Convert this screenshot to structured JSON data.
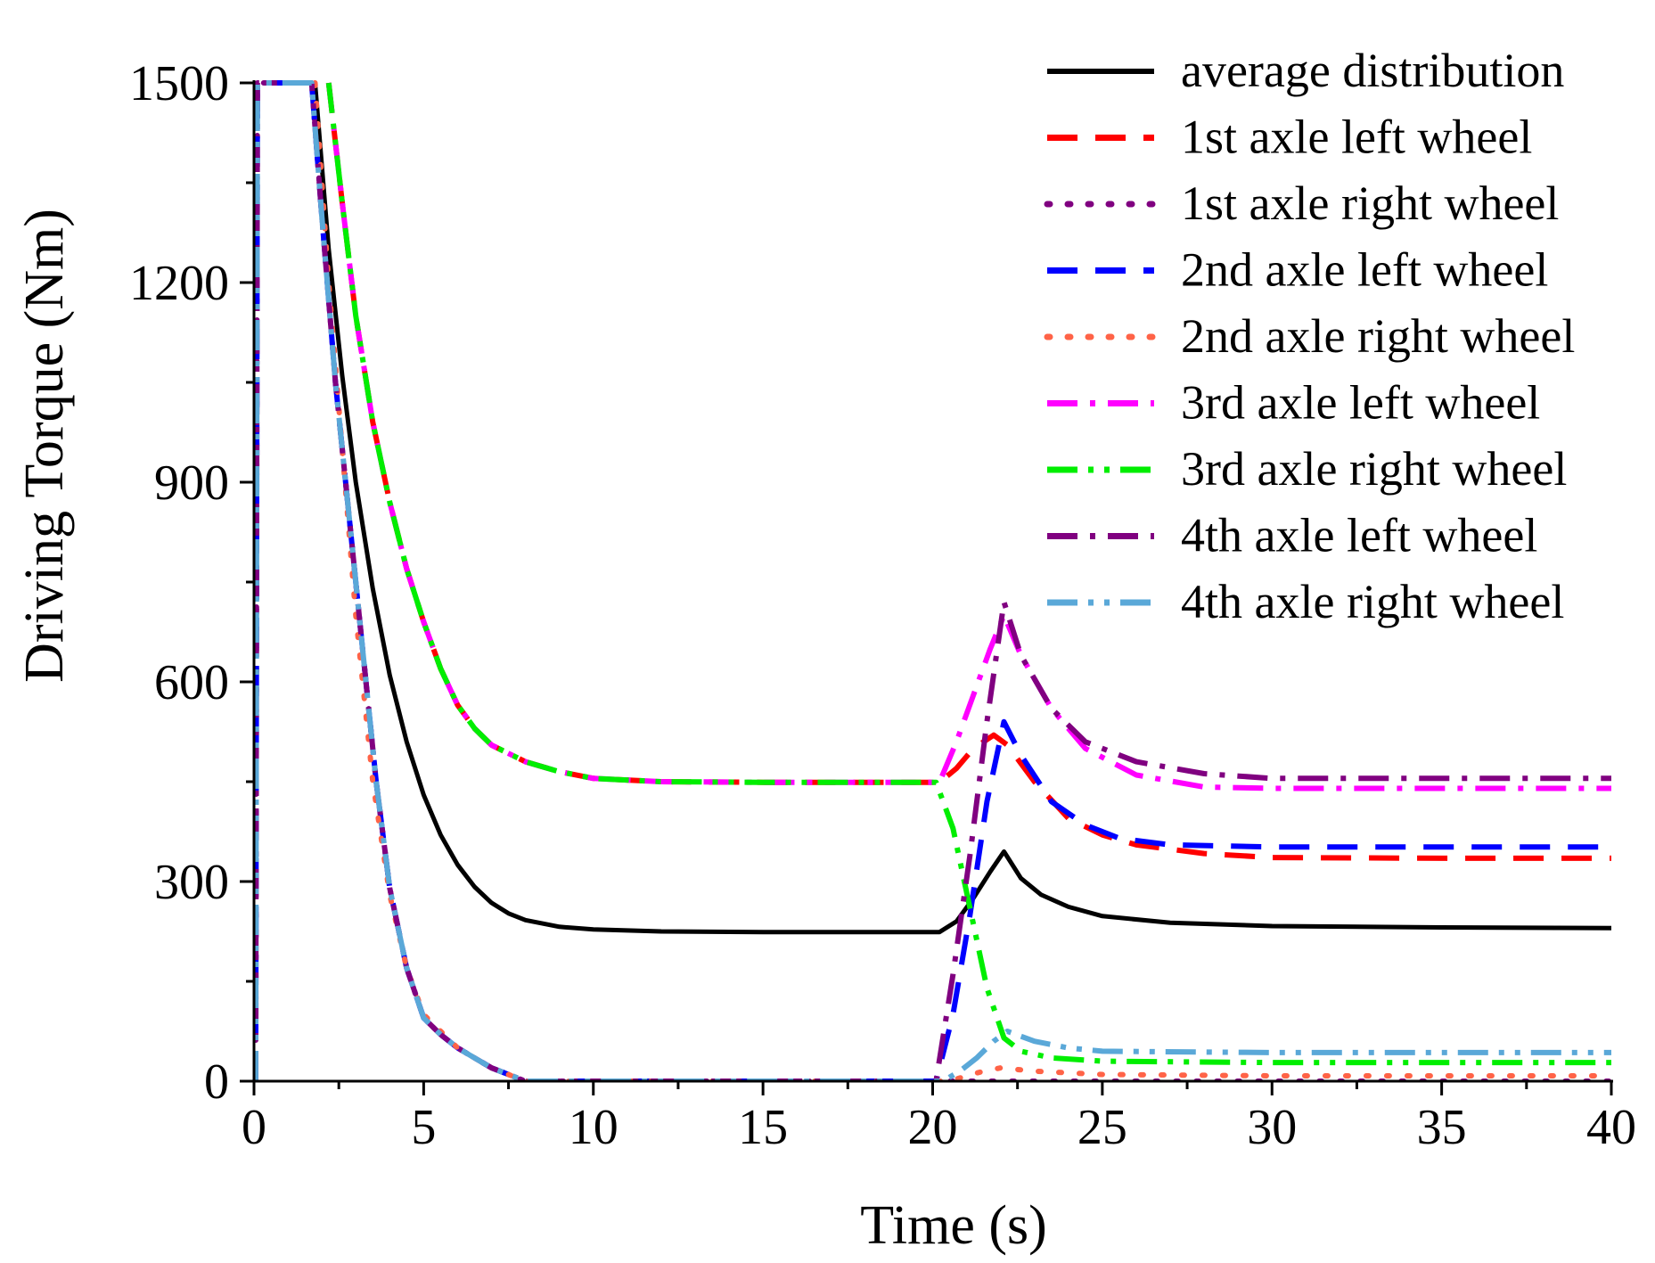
{
  "chart_data": {
    "type": "line",
    "title": "",
    "xlabel": "Time (s)",
    "ylabel": "Driving Torque (Nm)",
    "xlim": [
      0,
      40
    ],
    "ylim": [
      0,
      1500
    ],
    "xticks": [
      0,
      5,
      10,
      15,
      20,
      25,
      30,
      35,
      40
    ],
    "yticks": [
      0,
      300,
      600,
      900,
      1200,
      1500
    ],
    "grid": false,
    "legend_position": "top-right",
    "series": [
      {
        "name": "average distribution",
        "color": "#000000",
        "style": "solid",
        "points": [
          [
            1.8,
            1500
          ],
          [
            2.2,
            1250
          ],
          [
            2.6,
            1060
          ],
          [
            3,
            900
          ],
          [
            3.5,
            740
          ],
          [
            4,
            610
          ],
          [
            4.5,
            510
          ],
          [
            5,
            430
          ],
          [
            5.5,
            370
          ],
          [
            6,
            325
          ],
          [
            6.5,
            292
          ],
          [
            7,
            268
          ],
          [
            7.5,
            252
          ],
          [
            8,
            242
          ],
          [
            9,
            232
          ],
          [
            10,
            228
          ],
          [
            12,
            225
          ],
          [
            15,
            224
          ],
          [
            18,
            224
          ],
          [
            20.2,
            224
          ],
          [
            20.7,
            240
          ],
          [
            21.2,
            275
          ],
          [
            21.7,
            315
          ],
          [
            22.1,
            345
          ],
          [
            22.6,
            305
          ],
          [
            23.2,
            280
          ],
          [
            24,
            262
          ],
          [
            25,
            248
          ],
          [
            27,
            238
          ],
          [
            30,
            233
          ],
          [
            35,
            231
          ],
          [
            40,
            230
          ]
        ]
      },
      {
        "name": "1st axle left wheel",
        "color": "#ff0000",
        "style": "dash",
        "points": [
          [
            2.2,
            1500
          ],
          [
            2.6,
            1320
          ],
          [
            3,
            1150
          ],
          [
            3.5,
            990
          ],
          [
            4,
            870
          ],
          [
            4.5,
            770
          ],
          [
            5,
            690
          ],
          [
            5.5,
            620
          ],
          [
            6,
            565
          ],
          [
            6.5,
            530
          ],
          [
            7,
            505
          ],
          [
            8,
            480
          ],
          [
            9,
            465
          ],
          [
            10,
            455
          ],
          [
            12,
            450
          ],
          [
            15,
            449
          ],
          [
            18,
            449
          ],
          [
            20.2,
            449
          ],
          [
            20.7,
            470
          ],
          [
            21.2,
            500
          ],
          [
            21.8,
            520
          ],
          [
            22.2,
            505
          ],
          [
            23,
            450
          ],
          [
            24,
            395
          ],
          [
            25,
            370
          ],
          [
            26,
            355
          ],
          [
            28,
            342
          ],
          [
            30,
            336
          ],
          [
            35,
            335
          ],
          [
            40,
            335
          ]
        ]
      },
      {
        "name": "1st axle right wheel",
        "color": "#800080",
        "style": "dot",
        "points": [
          [
            0.05,
            0
          ],
          [
            0.1,
            1500
          ],
          [
            1.7,
            1500
          ],
          [
            2,
            1300
          ],
          [
            2.4,
            1050
          ],
          [
            2.8,
            850
          ],
          [
            3.2,
            650
          ],
          [
            3.6,
            450
          ],
          [
            4,
            290
          ],
          [
            4.5,
            170
          ],
          [
            5,
            95
          ],
          [
            5.5,
            70
          ],
          [
            6,
            50
          ],
          [
            6.5,
            35
          ],
          [
            7,
            20
          ],
          [
            7.5,
            10
          ],
          [
            8,
            0
          ],
          [
            12,
            0
          ],
          [
            20,
            0
          ],
          [
            21,
            0
          ],
          [
            22,
            0
          ],
          [
            25,
            0
          ],
          [
            30,
            0
          ],
          [
            35,
            0
          ],
          [
            40,
            0
          ]
        ]
      },
      {
        "name": "2nd axle left wheel",
        "color": "#0000ff",
        "style": "dash",
        "points": [
          [
            0.05,
            0
          ],
          [
            0.1,
            1500
          ],
          [
            1.7,
            1500
          ],
          [
            2,
            1300
          ],
          [
            2.4,
            1050
          ],
          [
            2.8,
            850
          ],
          [
            3.2,
            650
          ],
          [
            3.6,
            450
          ],
          [
            4,
            290
          ],
          [
            4.5,
            170
          ],
          [
            5,
            95
          ],
          [
            5.5,
            70
          ],
          [
            6,
            50
          ],
          [
            6.5,
            35
          ],
          [
            7,
            20
          ],
          [
            7.5,
            10
          ],
          [
            8,
            0
          ],
          [
            12,
            0
          ],
          [
            20.1,
            0
          ],
          [
            20.6,
            100
          ],
          [
            21.1,
            250
          ],
          [
            21.6,
            420
          ],
          [
            22.1,
            540
          ],
          [
            22.6,
            490
          ],
          [
            23.5,
            420
          ],
          [
            24.5,
            385
          ],
          [
            25.5,
            365
          ],
          [
            27,
            355
          ],
          [
            30,
            352
          ],
          [
            35,
            352
          ],
          [
            40,
            352
          ]
        ]
      },
      {
        "name": "2nd axle right wheel",
        "color": "#ff6347",
        "style": "dot",
        "points": [
          [
            1.8,
            1500
          ],
          [
            2.2,
            1200
          ],
          [
            2.6,
            950
          ],
          [
            3,
            700
          ],
          [
            3.5,
            450
          ],
          [
            4,
            280
          ],
          [
            4.5,
            170
          ],
          [
            5,
            100
          ],
          [
            6,
            50
          ],
          [
            7,
            20
          ],
          [
            8,
            0
          ],
          [
            12,
            0
          ],
          [
            20.5,
            0
          ],
          [
            21,
            8
          ],
          [
            21.5,
            15
          ],
          [
            22,
            20
          ],
          [
            23,
            15
          ],
          [
            25,
            10
          ],
          [
            30,
            8
          ],
          [
            35,
            8
          ],
          [
            40,
            8
          ]
        ]
      },
      {
        "name": "3rd axle left wheel",
        "color": "#ff00ff",
        "style": "dashdot",
        "points": [
          [
            2.2,
            1500
          ],
          [
            2.6,
            1320
          ],
          [
            3,
            1150
          ],
          [
            3.5,
            990
          ],
          [
            4,
            870
          ],
          [
            4.5,
            770
          ],
          [
            5,
            690
          ],
          [
            5.5,
            620
          ],
          [
            6,
            565
          ],
          [
            6.5,
            530
          ],
          [
            7,
            505
          ],
          [
            8,
            480
          ],
          [
            9,
            465
          ],
          [
            10,
            455
          ],
          [
            12,
            450
          ],
          [
            15,
            449
          ],
          [
            18,
            449
          ],
          [
            20.2,
            449
          ],
          [
            20.7,
            510
          ],
          [
            21.2,
            580
          ],
          [
            21.7,
            650
          ],
          [
            22.1,
            700
          ],
          [
            22.6,
            640
          ],
          [
            23.5,
            560
          ],
          [
            24.5,
            500
          ],
          [
            26,
            460
          ],
          [
            28,
            442
          ],
          [
            30,
            440
          ],
          [
            35,
            440
          ],
          [
            40,
            440
          ]
        ]
      },
      {
        "name": "3rd axle right wheel",
        "color": "#00ee00",
        "style": "dashdotdot",
        "points": [
          [
            2.2,
            1500
          ],
          [
            2.6,
            1320
          ],
          [
            3,
            1150
          ],
          [
            3.5,
            990
          ],
          [
            4,
            870
          ],
          [
            4.5,
            770
          ],
          [
            5,
            690
          ],
          [
            5.5,
            620
          ],
          [
            6,
            565
          ],
          [
            6.5,
            530
          ],
          [
            7,
            505
          ],
          [
            8,
            480
          ],
          [
            9,
            465
          ],
          [
            10,
            455
          ],
          [
            12,
            450
          ],
          [
            15,
            449
          ],
          [
            18,
            449
          ],
          [
            20.1,
            449
          ],
          [
            20.6,
            380
          ],
          [
            21.1,
            260
          ],
          [
            21.6,
            140
          ],
          [
            22.1,
            65
          ],
          [
            22.6,
            45
          ],
          [
            23.5,
            35
          ],
          [
            25,
            30
          ],
          [
            30,
            28
          ],
          [
            35,
            28
          ],
          [
            40,
            28
          ]
        ]
      },
      {
        "name": "4th axle left wheel",
        "color": "#800080",
        "style": "dashdot",
        "points": [
          [
            0.05,
            0
          ],
          [
            0.1,
            1500
          ],
          [
            1.7,
            1500
          ],
          [
            2,
            1300
          ],
          [
            2.4,
            1050
          ],
          [
            2.8,
            850
          ],
          [
            3.2,
            650
          ],
          [
            3.6,
            450
          ],
          [
            4,
            290
          ],
          [
            4.5,
            170
          ],
          [
            5,
            95
          ],
          [
            5.5,
            70
          ],
          [
            6,
            50
          ],
          [
            6.5,
            35
          ],
          [
            7,
            20
          ],
          [
            7.5,
            10
          ],
          [
            8,
            0
          ],
          [
            12,
            0
          ],
          [
            20.1,
            0
          ],
          [
            20.6,
            160
          ],
          [
            21.1,
            340
          ],
          [
            21.6,
            540
          ],
          [
            22.1,
            720
          ],
          [
            22.6,
            640
          ],
          [
            23.5,
            560
          ],
          [
            24.5,
            510
          ],
          [
            26,
            480
          ],
          [
            28,
            462
          ],
          [
            30,
            455
          ],
          [
            35,
            455
          ],
          [
            40,
            455
          ]
        ]
      },
      {
        "name": "4th axle right wheel",
        "color": "#5aa8d8",
        "style": "dashdotdot",
        "points": [
          [
            0.05,
            0
          ],
          [
            0.1,
            1500
          ],
          [
            1.7,
            1500
          ],
          [
            2,
            1300
          ],
          [
            2.4,
            1050
          ],
          [
            2.8,
            850
          ],
          [
            3.2,
            650
          ],
          [
            3.6,
            450
          ],
          [
            4,
            290
          ],
          [
            4.5,
            170
          ],
          [
            5,
            95
          ],
          [
            5.5,
            70
          ],
          [
            6,
            50
          ],
          [
            6.5,
            35
          ],
          [
            7,
            20
          ],
          [
            7.5,
            10
          ],
          [
            8,
            0
          ],
          [
            12,
            0
          ],
          [
            20.3,
            0
          ],
          [
            20.8,
            15
          ],
          [
            21.3,
            35
          ],
          [
            21.8,
            60
          ],
          [
            22.2,
            75
          ],
          [
            23,
            60
          ],
          [
            24,
            50
          ],
          [
            25,
            45
          ],
          [
            30,
            43
          ],
          [
            35,
            43
          ],
          [
            40,
            43
          ]
        ]
      }
    ]
  }
}
